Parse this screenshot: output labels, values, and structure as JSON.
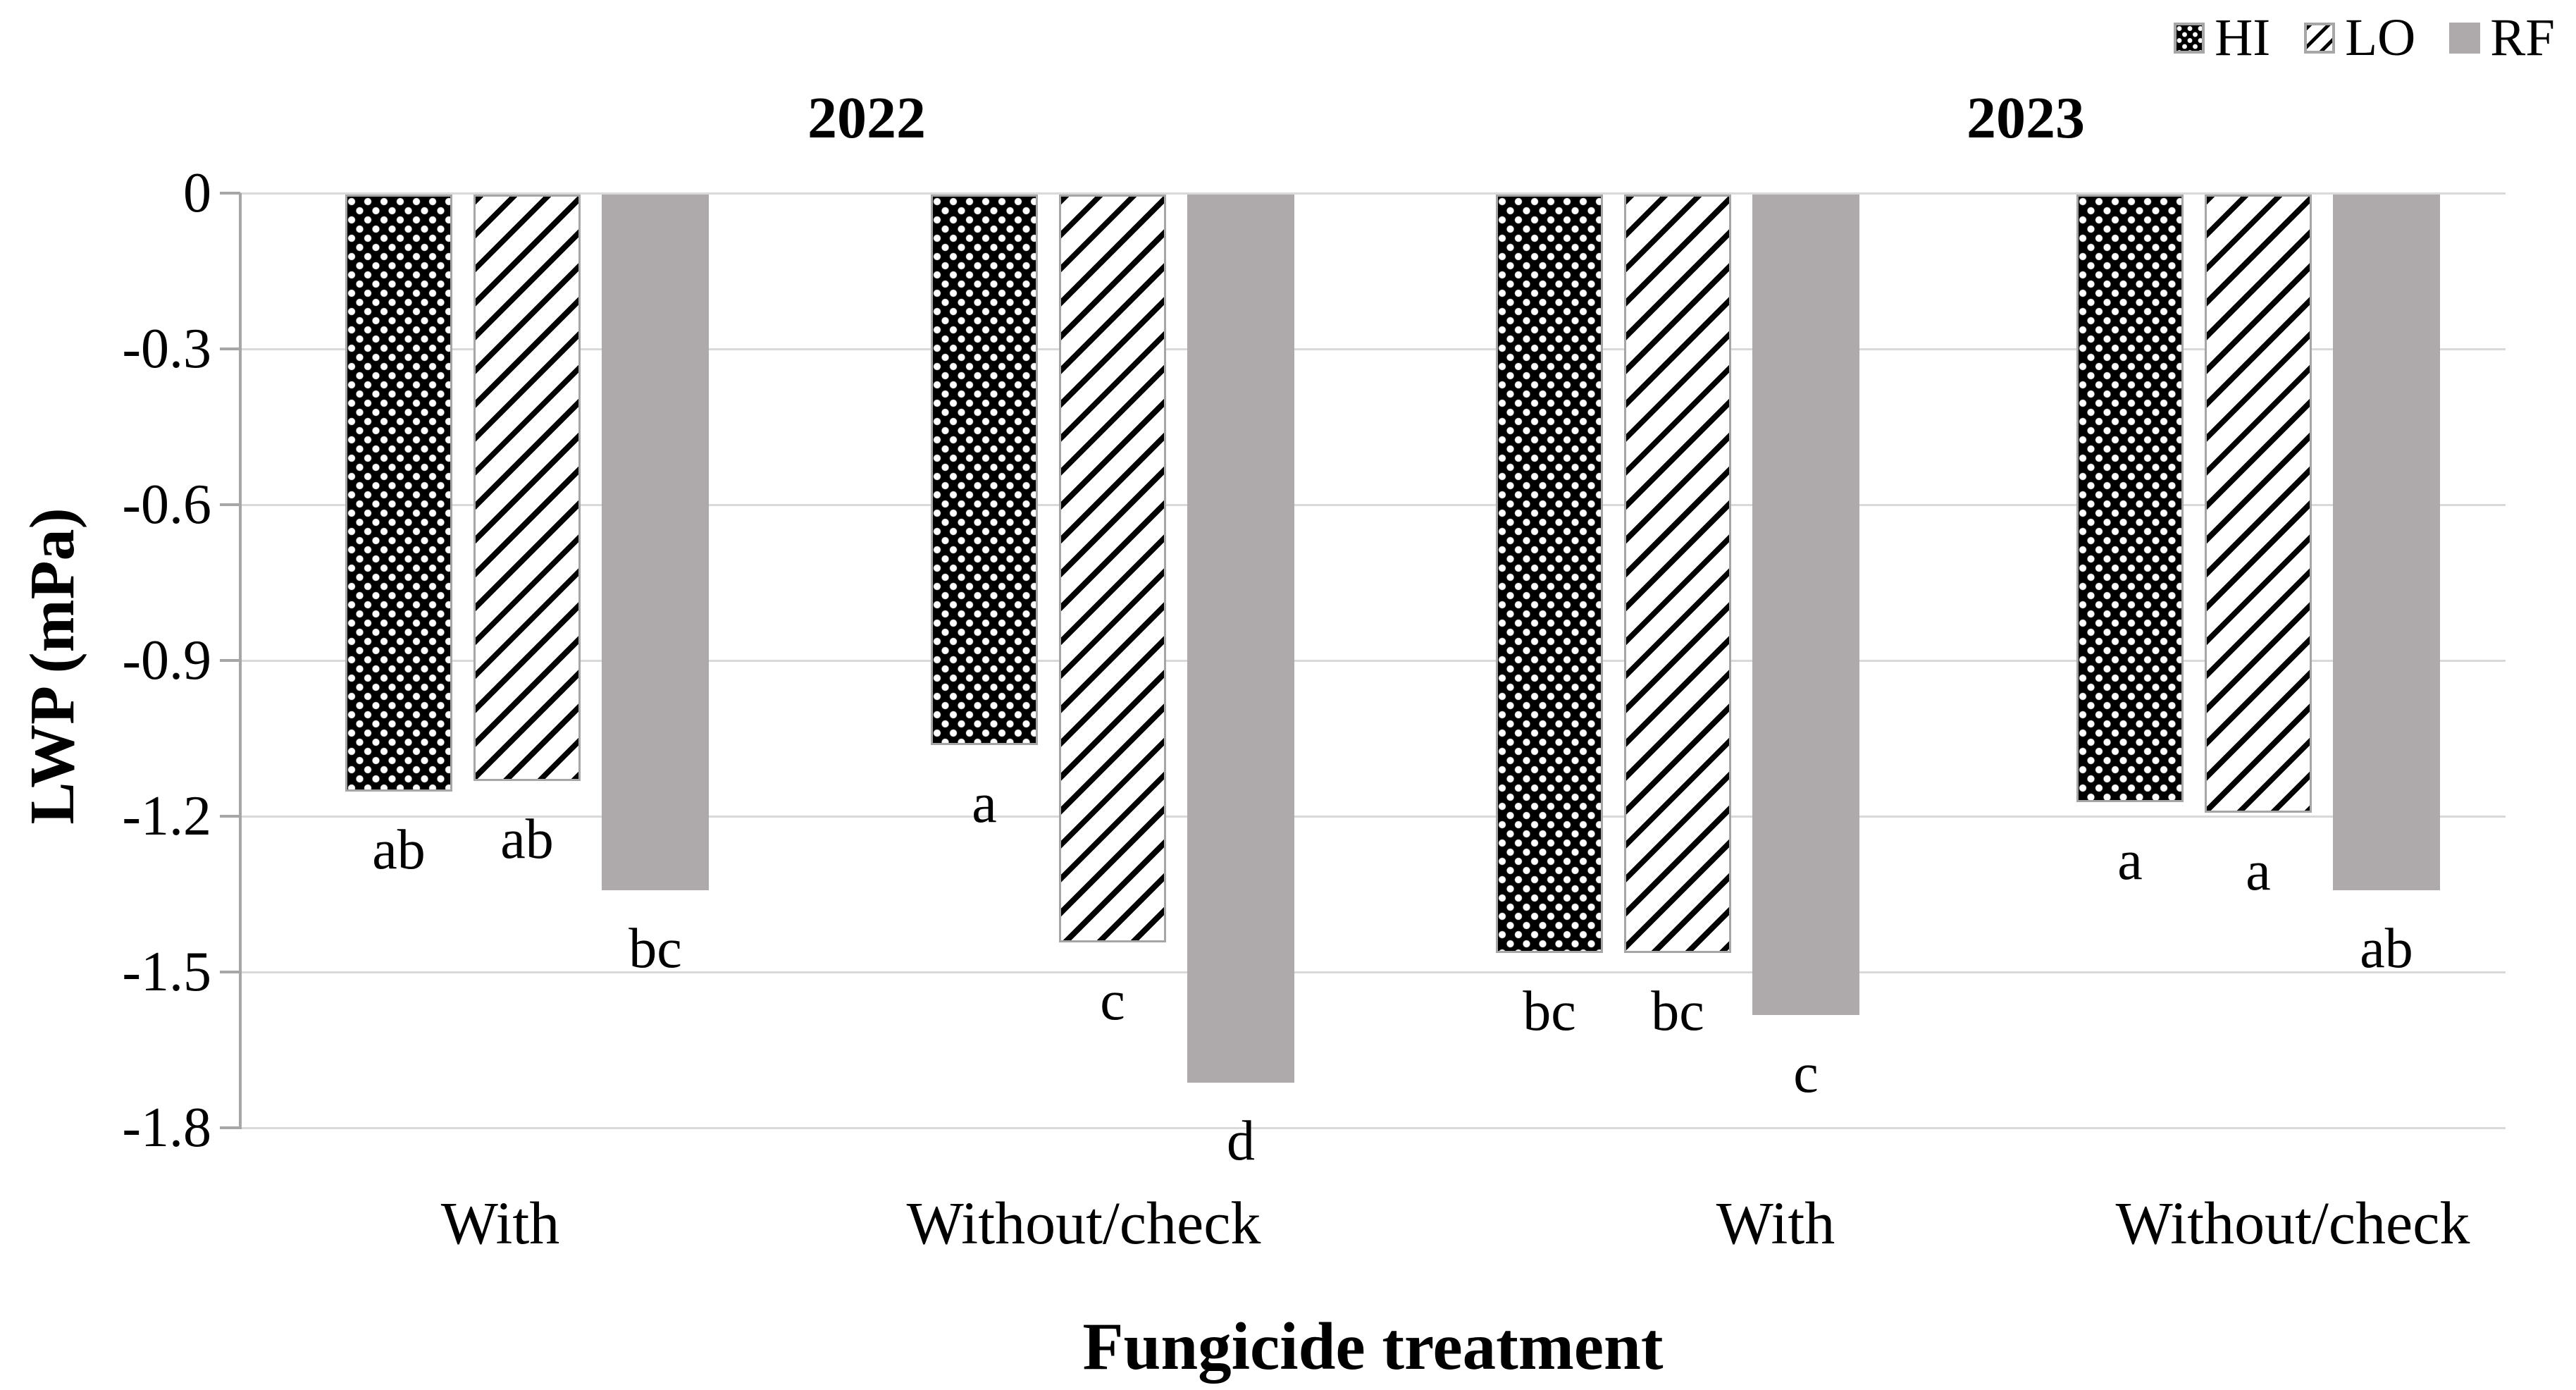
{
  "chart_data": {
    "type": "bar",
    "title": "",
    "ylabel": "LWP (mPa)",
    "xlabel": "Fungicide treatment",
    "years": [
      "2022",
      "2023"
    ],
    "categories": [
      "With",
      "Without/check",
      "With",
      "Without/check"
    ],
    "ytick_labels": [
      "0",
      "-0.3",
      "-0.6",
      "-0.9",
      "-1.2",
      "-1.5",
      "-1.8"
    ],
    "yticks": [
      0,
      -0.3,
      -0.6,
      -0.9,
      -1.2,
      -1.5,
      -1.8
    ],
    "ylim": [
      0,
      -1.8
    ],
    "grid": true,
    "bar_direction": "down",
    "legend_position": "top-right",
    "series": [
      {
        "name": "HI",
        "pattern": "white-dots-on-black",
        "values": [
          -1.15,
          -1.06,
          -1.46,
          -1.17
        ],
        "sig_letters": [
          "ab",
          "a",
          "bc",
          "a"
        ]
      },
      {
        "name": "LO",
        "pattern": "diagonal-hatch",
        "values": [
          -1.13,
          -1.44,
          -1.46,
          -1.19
        ],
        "sig_letters": [
          "ab",
          "c",
          "bc",
          "a"
        ]
      },
      {
        "name": "RF",
        "pattern": "solid-gray",
        "values": [
          -1.34,
          -1.71,
          -1.58,
          -1.34
        ],
        "sig_letters": [
          "bc",
          "d",
          "c",
          "ab"
        ]
      }
    ],
    "colors": {
      "solid_bar_gray": "#aeaaab",
      "bar_outline": "#a6a6a6",
      "gridline": "#d9d9d9",
      "axis": "#a6a6a6",
      "pattern_black": "#000000",
      "text": "#000000",
      "background": "#ffffff"
    }
  }
}
